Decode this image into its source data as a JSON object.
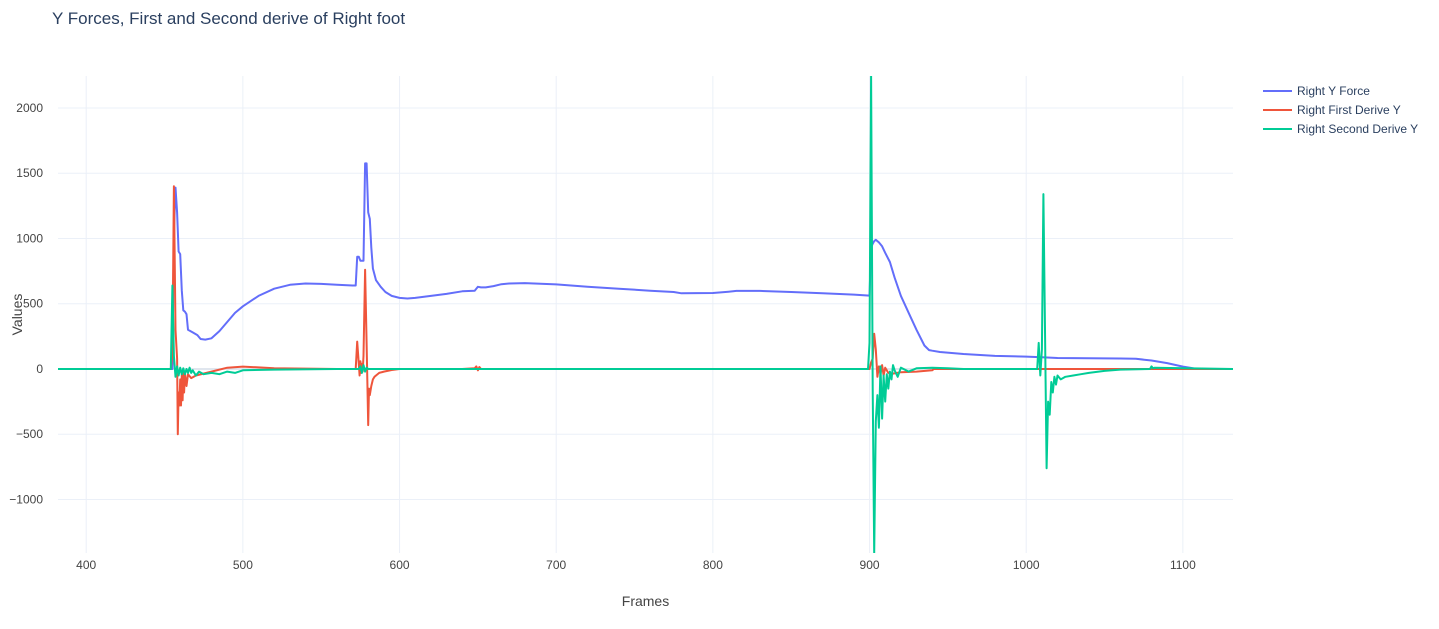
{
  "chart_data": {
    "type": "line",
    "title": "Y Forces, First and Second derive of Right foot",
    "xlabel": "Frames",
    "ylabel": "Values",
    "xlim": [
      382,
      1132
    ],
    "ylim": [
      -1410,
      2245
    ],
    "xticks": [
      400,
      500,
      600,
      700,
      800,
      900,
      1000,
      1100
    ],
    "yticks": [
      -1000,
      -500,
      0,
      500,
      1000,
      1500,
      2000
    ],
    "grid": true,
    "legend": "top-right",
    "series": [
      {
        "name": "Right Y Force",
        "color": "#636efa",
        "x": [
          382,
          455,
          456,
          457,
          458,
          459,
          460,
          461,
          462,
          463,
          464,
          465,
          468,
          471,
          473,
          476,
          480,
          485,
          490,
          495,
          500,
          510,
          520,
          530,
          540,
          550,
          560,
          570,
          572,
          573,
          574,
          575,
          577,
          578,
          579,
          580,
          581,
          582,
          583,
          585,
          588,
          591,
          595,
          600,
          605,
          610,
          620,
          630,
          640,
          648,
          650,
          652,
          655,
          660,
          665,
          670,
          680,
          700,
          720,
          740,
          760,
          775,
          780,
          800,
          810,
          815,
          830,
          850,
          870,
          890,
          900,
          901,
          902,
          903,
          904,
          905,
          906,
          908,
          910,
          913,
          916,
          920,
          925,
          930,
          935,
          938,
          940,
          945,
          960,
          980,
          1000,
          1010,
          1020,
          1040,
          1060,
          1070,
          1080,
          1090,
          1100,
          1105,
          1108,
          1110,
          1132
        ],
        "values": [
          0,
          0,
          1050,
          1390,
          1200,
          900,
          880,
          600,
          450,
          440,
          420,
          300,
          280,
          260,
          230,
          225,
          235,
          290,
          360,
          430,
          480,
          560,
          615,
          645,
          655,
          652,
          645,
          640,
          640,
          860,
          860,
          830,
          830,
          1575,
          1575,
          1200,
          1150,
          930,
          770,
          680,
          630,
          590,
          560,
          545,
          540,
          545,
          560,
          575,
          595,
          600,
          630,
          625,
          625,
          635,
          650,
          655,
          658,
          648,
          630,
          615,
          600,
          590,
          580,
          582,
          592,
          598,
          598,
          590,
          580,
          570,
          562,
          930,
          960,
          980,
          990,
          980,
          970,
          940,
          890,
          820,
          700,
          560,
          430,
          300,
          180,
          145,
          140,
          130,
          115,
          100,
          95,
          90,
          84,
          82,
          80,
          78,
          65,
          45,
          18,
          8,
          2,
          0,
          0
        ]
      },
      {
        "name": "Right First Derive Y",
        "color": "#ef553b",
        "x": [
          382,
          454,
          455,
          456,
          457,
          458,
          458.5,
          459,
          459.5,
          460,
          460.5,
          461,
          461.5,
          462,
          462.5,
          463,
          464,
          465,
          467,
          470,
          480,
          490,
          500,
          510,
          520,
          540,
          560,
          572,
          573,
          574,
          574.5,
          575,
          575.5,
          576,
          576.5,
          577,
          578,
          579,
          580,
          580.5,
          581,
          582,
          583,
          584,
          585,
          587,
          590,
          595,
          600,
          640,
          648,
          649,
          650,
          651,
          652,
          700,
          800,
          899,
          900,
          901,
          902,
          903,
          904,
          905,
          906,
          907,
          908,
          909,
          910,
          912,
          915,
          920,
          930,
          940,
          941,
          1132
        ],
        "values": [
          0,
          0,
          120,
          1400,
          300,
          80,
          -500,
          -180,
          -280,
          -80,
          -280,
          -40,
          -240,
          -30,
          -180,
          -30,
          -130,
          -40,
          -70,
          -50,
          -20,
          10,
          18,
          12,
          5,
          3,
          0,
          0,
          210,
          40,
          -50,
          60,
          -30,
          40,
          -20,
          100,
          760,
          200,
          -430,
          -150,
          -200,
          -130,
          -80,
          -60,
          -50,
          -30,
          -20,
          -8,
          0,
          0,
          5,
          20,
          -10,
          15,
          0,
          0,
          0,
          0,
          0,
          50,
          80,
          270,
          150,
          -60,
          20,
          -40,
          30,
          -50,
          10,
          -30,
          -35,
          -25,
          -20,
          -10,
          0,
          0
        ]
      },
      {
        "name": "Right Second Derive Y",
        "color": "#00cc96",
        "x": [
          382,
          454,
          455,
          456,
          457,
          458,
          459,
          460,
          461,
          462,
          463,
          464,
          465,
          466,
          467,
          468,
          470,
          472,
          475,
          480,
          485,
          490,
          495,
          500,
          520,
          560,
          574,
          575,
          576,
          577,
          578,
          579,
          580,
          590,
          600,
          650,
          700,
          800,
          899,
          900,
          901,
          902,
          903,
          904,
          905,
          906,
          907,
          908,
          909,
          910,
          911,
          912,
          913,
          914,
          915,
          916,
          918,
          920,
          925,
          930,
          940,
          950,
          960,
          1000,
          1007,
          1008,
          1009,
          1010,
          1011,
          1012,
          1013,
          1014,
          1015,
          1016,
          1017,
          1018,
          1019,
          1020,
          1022,
          1025,
          1030,
          1035,
          1040,
          1050,
          1060,
          1079,
          1080,
          1081,
          1082,
          1132
        ],
        "values": [
          0,
          0,
          640,
          100,
          -60,
          20,
          -50,
          10,
          -40,
          5,
          -40,
          0,
          -30,
          10,
          -30,
          -10,
          -50,
          -20,
          -40,
          -30,
          -40,
          -20,
          -30,
          -10,
          -5,
          0,
          0,
          20,
          -30,
          30,
          -20,
          10,
          0,
          0,
          0,
          0,
          0,
          0,
          0,
          200,
          2245,
          -150,
          -1410,
          -400,
          -200,
          -450,
          20,
          -380,
          -50,
          -250,
          -40,
          -150,
          -20,
          -80,
          30,
          -10,
          -60,
          10,
          -20,
          5,
          10,
          5,
          0,
          0,
          0,
          200,
          -50,
          150,
          1340,
          300,
          -760,
          -250,
          -350,
          -100,
          -180,
          -60,
          -120,
          -50,
          -80,
          -60,
          -50,
          -40,
          -30,
          -15,
          -5,
          0,
          20,
          5,
          10,
          0
        ]
      }
    ]
  }
}
